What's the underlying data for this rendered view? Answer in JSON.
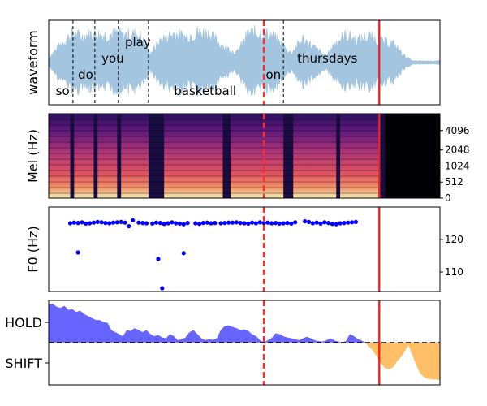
{
  "chart_data": [
    {
      "type": "area",
      "panel": "waveform",
      "ylabel": "waveform",
      "x_range": [
        0,
        10
      ],
      "ylim": [
        -1,
        1
      ],
      "envelope": [
        [
          0.0,
          0.15
        ],
        [
          0.3,
          0.55
        ],
        [
          0.6,
          0.9
        ],
        [
          0.85,
          0.8
        ],
        [
          1.1,
          0.9
        ],
        [
          1.4,
          0.85
        ],
        [
          1.7,
          0.9
        ],
        [
          2.0,
          0.85
        ],
        [
          2.3,
          0.9
        ],
        [
          2.6,
          0.3
        ],
        [
          2.9,
          0.75
        ],
        [
          3.2,
          0.9
        ],
        [
          3.5,
          0.8
        ],
        [
          3.8,
          0.95
        ],
        [
          4.1,
          0.9
        ],
        [
          4.4,
          0.55
        ],
        [
          4.8,
          0.3
        ],
        [
          5.1,
          0.9
        ],
        [
          5.4,
          0.95
        ],
        [
          5.7,
          0.85
        ],
        [
          6.0,
          0.5
        ],
        [
          6.2,
          0.3
        ],
        [
          6.5,
          0.75
        ],
        [
          6.8,
          0.45
        ],
        [
          7.1,
          0.2
        ],
        [
          7.3,
          0.6
        ],
        [
          7.6,
          0.85
        ],
        [
          7.9,
          0.7
        ],
        [
          8.2,
          0.8
        ],
        [
          8.5,
          0.65
        ],
        [
          8.8,
          0.6
        ],
        [
          9.1,
          0.2
        ],
        [
          9.3,
          0.05
        ],
        [
          10.0,
          0.05
        ]
      ],
      "words": [
        {
          "text": "so",
          "x": 0.18,
          "y": -0.7
        },
        {
          "text": "do",
          "x": 0.75,
          "y": -0.3
        },
        {
          "text": "you",
          "x": 1.35,
          "y": 0.1
        },
        {
          "text": "play",
          "x": 1.95,
          "y": 0.5
        },
        {
          "text": "basketball",
          "x": 3.2,
          "y": -0.7
        },
        {
          "text": "on",
          "x": 5.55,
          "y": -0.3
        },
        {
          "text": "thursdays",
          "x": 6.35,
          "y": 0.1
        }
      ],
      "word_boundaries": [
        0.62,
        1.18,
        1.78,
        2.55,
        6.0
      ],
      "current_position": 5.5,
      "end_position": 8.45,
      "colors": {
        "fill": "#a3c5e0",
        "boundary": "#000000",
        "current": "#ff2a2a",
        "end": "#ee2222"
      }
    },
    {
      "type": "heatmap",
      "panel": "mel",
      "ylabel": "Mel (Hz)",
      "yticks": [
        "0",
        "512",
        "1024",
        "2048",
        "4096"
      ],
      "syllables": [
        [
          0.0,
          0.55
        ],
        [
          0.65,
          1.15
        ],
        [
          1.25,
          1.75
        ],
        [
          1.85,
          2.55
        ],
        [
          2.95,
          4.45
        ],
        [
          4.65,
          6.0
        ],
        [
          6.25,
          7.35
        ],
        [
          7.45,
          8.45
        ]
      ],
      "speech_end": 8.6,
      "colormap": "magma"
    },
    {
      "type": "scatter",
      "panel": "f0",
      "ylabel": "F0 (Hz)",
      "yticks": [
        "110",
        "120"
      ],
      "ylim": [
        104,
        130
      ],
      "x": [
        0.55,
        0.65,
        0.75,
        0.85,
        0.95,
        1.05,
        1.15,
        1.25,
        1.35,
        1.45,
        1.55,
        1.65,
        1.75,
        1.85,
        1.95,
        2.05,
        2.15,
        2.3,
        2.4,
        2.5,
        2.65,
        2.75,
        2.85,
        2.95,
        3.05,
        3.15,
        3.25,
        3.35,
        3.45,
        3.55,
        3.75,
        3.85,
        3.95,
        4.05,
        4.15,
        4.25,
        4.4,
        4.5,
        4.6,
        4.7,
        4.8,
        4.9,
        5.0,
        5.1,
        5.2,
        5.3,
        5.4,
        5.5,
        5.6,
        5.7,
        5.8,
        5.9,
        6.0,
        6.1,
        6.2,
        6.3,
        6.55,
        6.65,
        6.75,
        6.85,
        6.95,
        7.05,
        7.15,
        7.25,
        7.35,
        7.45,
        7.55,
        7.65,
        7.75,
        7.85,
        0.75,
        2.8,
        2.9,
        3.45
      ],
      "y": [
        125.0,
        125.2,
        125.1,
        125.3,
        124.9,
        125.0,
        125.2,
        125.4,
        125.3,
        125.1,
        125.0,
        125.2,
        125.3,
        125.4,
        125.2,
        124.1,
        125.9,
        125.2,
        125.1,
        125.0,
        124.9,
        125.2,
        125.1,
        124.8,
        125.0,
        125.3,
        125.0,
        124.9,
        124.7,
        125.1,
        125.0,
        124.8,
        125.1,
        125.2,
        125.0,
        125.1,
        125.0,
        125.1,
        125.2,
        125.2,
        125.3,
        125.1,
        125.0,
        124.9,
        125.2,
        125.0,
        125.3,
        125.1,
        125.2,
        125.0,
        125.1,
        124.9,
        125.0,
        125.1,
        124.9,
        125.3,
        125.6,
        125.4,
        125.0,
        125.2,
        124.9,
        125.3,
        125.1,
        124.8,
        124.7,
        125.0,
        125.1,
        125.2,
        125.3,
        125.4,
        116.0,
        114.0,
        105.0,
        115.8
      ],
      "color": "#0000ff"
    },
    {
      "type": "area",
      "panel": "turn",
      "yticklabels": [
        "HOLD",
        "SHIFT"
      ],
      "ylim": [
        -1,
        1
      ],
      "threshold": 0,
      "x": [
        0.0,
        0.1,
        0.2,
        0.3,
        0.4,
        0.5,
        0.6,
        0.7,
        0.8,
        0.9,
        1.0,
        1.1,
        1.2,
        1.3,
        1.4,
        1.5,
        1.6,
        1.7,
        1.8,
        1.9,
        2.0,
        2.1,
        2.2,
        2.3,
        2.4,
        2.5,
        2.6,
        2.7,
        2.8,
        2.9,
        3.0,
        3.1,
        3.2,
        3.3,
        3.4,
        3.5,
        3.6,
        3.7,
        3.8,
        3.9,
        4.0,
        4.1,
        4.2,
        4.3,
        4.4,
        4.5,
        4.6,
        4.7,
        4.8,
        4.9,
        5.0,
        5.1,
        5.2,
        5.3,
        5.4,
        5.5,
        5.6,
        5.7,
        5.8,
        5.9,
        6.0,
        6.1,
        6.2,
        6.3,
        6.4,
        6.5,
        6.6,
        6.7,
        6.8,
        6.9,
        7.0,
        7.1,
        7.2,
        7.3,
        7.4,
        7.5,
        7.6,
        7.7,
        7.8,
        7.9,
        8.0,
        8.1,
        8.2,
        8.3,
        8.4,
        8.5,
        8.6,
        8.7,
        8.8,
        8.9,
        9.0,
        9.1,
        9.2,
        9.3,
        9.4,
        9.5,
        9.6,
        9.7,
        9.8,
        9.9,
        10.0
      ],
      "values": [
        0.92,
        0.95,
        0.88,
        0.85,
        0.9,
        0.8,
        0.82,
        0.75,
        0.78,
        0.7,
        0.65,
        0.6,
        0.55,
        0.55,
        0.5,
        0.48,
        0.3,
        0.25,
        0.2,
        0.15,
        0.3,
        0.28,
        0.35,
        0.3,
        0.25,
        0.3,
        0.2,
        0.15,
        0.18,
        0.12,
        0.1,
        0.2,
        0.15,
        0.05,
        0.08,
        0.12,
        0.25,
        0.3,
        0.2,
        0.1,
        0.05,
        0.08,
        0.06,
        0.1,
        0.3,
        0.4,
        0.42,
        0.38,
        0.35,
        0.3,
        0.32,
        0.28,
        0.2,
        0.15,
        0.05,
        0.0,
        0.05,
        0.1,
        0.22,
        0.2,
        0.15,
        0.12,
        0.1,
        0.08,
        0.05,
        0.1,
        0.14,
        0.1,
        0.05,
        0.03,
        0.02,
        0.05,
        0.1,
        0.05,
        0.02,
        0.0,
        0.03,
        0.2,
        0.15,
        0.08,
        0.04,
        0.0,
        -0.1,
        -0.2,
        -0.35,
        -0.5,
        -0.62,
        -0.65,
        -0.6,
        -0.45,
        -0.35,
        -0.2,
        -0.05,
        -0.3,
        -0.55,
        -0.75,
        -0.85,
        -0.88,
        -0.9,
        -0.9,
        -0.92
      ],
      "colors": {
        "hold": "#6666ff",
        "shift": "#ffbf66"
      }
    }
  ]
}
